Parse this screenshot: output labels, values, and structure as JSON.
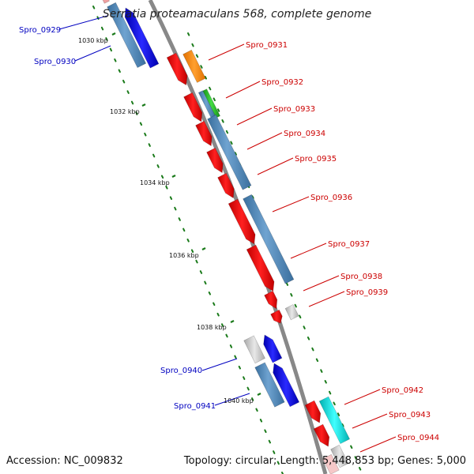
{
  "title": "Serratia proteamaculans 568, complete genome",
  "accession": "Accession: NC_009832",
  "summary": "Topology: circular; Length: 5,448,853 bp; Genes: 5,000",
  "colors": {
    "backbone": "#888888",
    "minus_label": "#0000c0",
    "plus_label": "#cc0000",
    "tick": "#1a7a1a",
    "orf_red": "#ee1111",
    "orf_orange": "#ff8800",
    "orf_green": "#22bb22",
    "orf_blue": "#1111ee",
    "orf_cyan": "#00dddd",
    "feature_steel": "#4f86bb",
    "feature_gray": "#c8c8c8"
  },
  "ticks": [
    "1030 kbp",
    "1032 kbp",
    "1034 kbp",
    "1036 kbp",
    "1038 kbp",
    "1040 kbp"
  ],
  "genes_minus": [
    "Spro_0929",
    "Spro_0930",
    "Spro_0940",
    "Spro_0941"
  ],
  "genes_plus": [
    "Spro_0931",
    "Spro_0932",
    "Spro_0933",
    "Spro_0934",
    "Spro_0935",
    "Spro_0936",
    "Spro_0937",
    "Spro_0938",
    "Spro_0939",
    "Spro_0942",
    "Spro_0943",
    "Spro_0944"
  ]
}
